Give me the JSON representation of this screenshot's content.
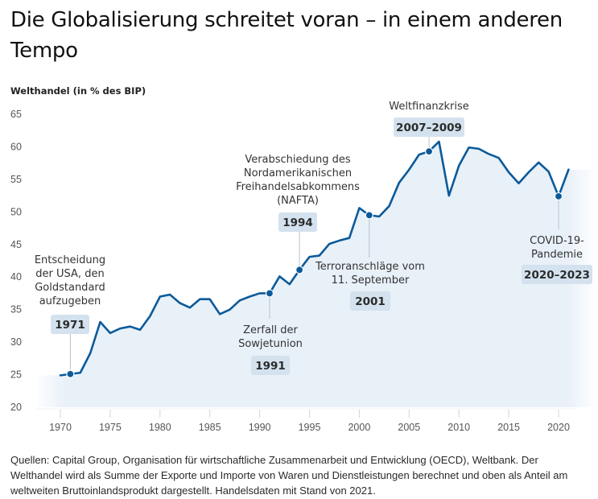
{
  "header": {
    "title": "Die Globalisierung schreitet voran – in einem anderen Tempo",
    "y_axis_label": "Welthandel (in % des BIP)"
  },
  "footer": {
    "source_text": "Quellen: Capital Group, Organisation für wirtschaftliche Zusammenarbeit und Entwicklung (OECD), Weltbank. Der Welthandel wird als Summe der Exporte und Importe von Waren und Dienstleistungen berechnet und oben als Anteil am weltweiten Bruttoinlandsprodukt dargestellt. Handelsdaten mit Stand von 2021."
  },
  "colors": {
    "line": "#0b5a9a",
    "area": "#e8f0f8",
    "badge": "#d3e2ee",
    "axis": "#cfd6dc"
  },
  "chart_data": {
    "type": "area",
    "title": "Die Globalisierung schreitet voran – in einem anderen Tempo",
    "xlabel": "",
    "ylabel": "Welthandel (in % des BIP)",
    "ylim": [
      20,
      65
    ],
    "xlim": [
      1970,
      2021
    ],
    "yticks": [
      20,
      25,
      30,
      35,
      40,
      45,
      50,
      55,
      60,
      65
    ],
    "xticks": [
      1970,
      1975,
      1980,
      1985,
      1990,
      1995,
      2000,
      2005,
      2010,
      2015,
      2020
    ],
    "grid": false,
    "series": [
      {
        "name": "Welthandel (in % des BIP)",
        "x": [
          1970,
          1971,
          1972,
          1973,
          1974,
          1975,
          1976,
          1977,
          1978,
          1979,
          1980,
          1981,
          1982,
          1983,
          1984,
          1985,
          1986,
          1987,
          1988,
          1989,
          1990,
          1991,
          1992,
          1993,
          1994,
          1995,
          1996,
          1997,
          1998,
          1999,
          2000,
          2001,
          2002,
          2003,
          2004,
          2005,
          2006,
          2007,
          2008,
          2009,
          2010,
          2011,
          2012,
          2013,
          2014,
          2015,
          2016,
          2017,
          2018,
          2019,
          2020,
          2021
        ],
        "values": [
          24.9,
          25.1,
          25.3,
          28.3,
          33.1,
          31.4,
          32.1,
          32.4,
          31.9,
          34.0,
          37.0,
          37.3,
          36.0,
          35.3,
          36.6,
          36.6,
          34.3,
          35.0,
          36.4,
          37.0,
          37.5,
          37.5,
          40.1,
          38.9,
          41.1,
          43.1,
          43.3,
          45.1,
          45.6,
          46.0,
          50.6,
          49.5,
          49.3,
          50.9,
          54.5,
          56.5,
          58.8,
          59.3,
          60.8,
          52.5,
          57.1,
          59.9,
          59.7,
          58.9,
          58.3,
          56.1,
          54.4,
          56.1,
          57.6,
          56.2,
          52.4,
          56.5
        ]
      }
    ],
    "annotations": [
      {
        "year": 1971,
        "badge": "1971",
        "text": [
          "Entscheidung",
          "der USA, den",
          "Goldstandard",
          "aufzugeben"
        ],
        "position": "above"
      },
      {
        "year": 1991,
        "badge": "1991",
        "text": [
          "Zerfall der",
          "Sowjetunion"
        ],
        "position": "below"
      },
      {
        "year": 1994,
        "badge": "1994",
        "text": [
          "Verabschiedung des",
          "Nordamerikanischen",
          "Freihandelsabkommens",
          "(NAFTA)"
        ],
        "position": "above"
      },
      {
        "year": 2001,
        "badge": "2001",
        "text": [
          "Terroranschläge vom",
          "11. September"
        ],
        "position": "below"
      },
      {
        "year": 2007,
        "badge": "2007–2009",
        "text": [
          "Weltfinanzkrise"
        ],
        "position": "above"
      },
      {
        "year": 2020,
        "badge": "2020–2023",
        "text": [
          "COVID-19-",
          "Pandemie"
        ],
        "position": "below"
      }
    ]
  }
}
